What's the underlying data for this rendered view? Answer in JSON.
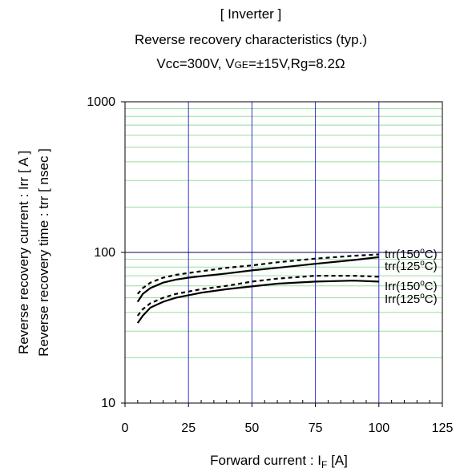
{
  "chart_data": {
    "type": "line",
    "title_lines": [
      "[ Inverter ]",
      "Reverse recovery characteristics  (typ.)"
    ],
    "conditions": {
      "prefix": "Vcc=300V, ",
      "v_main": "V",
      "v_sub": "GE",
      "rest": "=±15V,Rg=8.2Ω"
    },
    "xlabel": {
      "main": "Forward current : I",
      "sub": "F",
      "unit": " [A]"
    },
    "ylabel_lines": [
      "Reverse recovery current  :  Irr  [ A ]",
      "Reverse recovery time  :  trr  [ nsec ]"
    ],
    "xlim": [
      0,
      125
    ],
    "ylim": [
      10,
      1000
    ],
    "y_scale": "log",
    "x_ticks": [
      "0",
      "25",
      "50",
      "75",
      "100",
      "125"
    ],
    "y_ticks": [
      "10",
      "100",
      "1000"
    ],
    "colors": {
      "major_grid": "#3333cc",
      "minor_grid": "#99dd99",
      "series": "#000000"
    },
    "series": [
      {
        "name": "trr(150",
        "deg": "o",
        "unit": "C)",
        "style": "dotted",
        "x": [
          5,
          7,
          10,
          15,
          20,
          25,
          30,
          40,
          50,
          60,
          75,
          90,
          100
        ],
        "y": [
          53,
          58,
          63,
          68,
          71,
          73,
          75,
          79,
          82,
          86,
          91,
          95,
          97
        ]
      },
      {
        "name": "trr(125",
        "deg": "o",
        "unit": "C)",
        "style": "solid",
        "x": [
          5,
          7,
          10,
          15,
          20,
          25,
          30,
          40,
          50,
          60,
          75,
          90,
          100
        ],
        "y": [
          47,
          53,
          58,
          63,
          66,
          68,
          69.5,
          72.5,
          76,
          79,
          84,
          89,
          93
        ]
      },
      {
        "name": "Irr(150",
        "deg": "o",
        "unit": "C)",
        "style": "dotted",
        "x": [
          5,
          7,
          10,
          15,
          20,
          25,
          30,
          40,
          50,
          60,
          75,
          90,
          100
        ],
        "y": [
          38,
          42,
          46,
          50,
          53,
          55,
          57,
          60,
          64,
          67,
          70,
          70,
          69
        ]
      },
      {
        "name": "Irr(125",
        "deg": "o",
        "unit": "C)",
        "style": "solid",
        "x": [
          5,
          7,
          10,
          15,
          20,
          25,
          30,
          40,
          50,
          60,
          75,
          90,
          100
        ],
        "y": [
          34,
          38,
          43,
          47,
          50,
          52,
          54,
          57,
          59.5,
          62,
          64,
          65,
          64
        ]
      }
    ]
  }
}
